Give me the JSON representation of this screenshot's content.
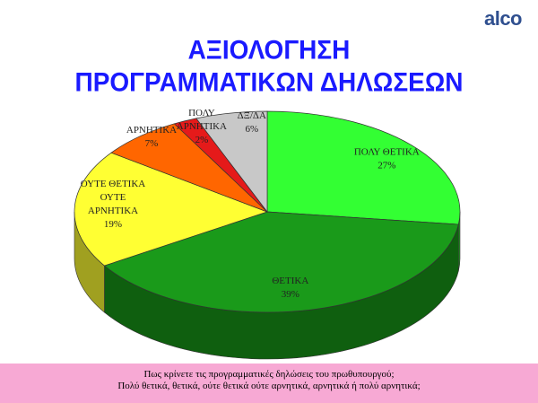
{
  "logo": "alco",
  "header": {
    "title_line1": "ΑΞΙΟΛΟΓΗΣΗ",
    "title_line2": "ΠΡΟΓΡΑΜΜΑΤΙΚΩΝ ΔΗΛΩΣΕΩΝ"
  },
  "footer": {
    "line1": "Πως κρίνετε τις προγραμματικές δηλώσεις του πρωθυπουργού;",
    "line2": "Πολύ θετικά, θετικά, ούτε θετικά ούτε αρνητικά, αρνητικά ή πολύ αρνητικά;"
  },
  "chart_data": {
    "type": "pie",
    "style": "3d",
    "title": "",
    "slices": [
      {
        "label": [
          "ΠΟΛΥ ΘΕΤΙΚΑ"
        ],
        "value": 27,
        "value_label": "27%",
        "color": "#33ff33",
        "side_color": "#1fa01f"
      },
      {
        "label": [
          "ΘΕΤΙΚΑ"
        ],
        "value": 39,
        "value_label": "39%",
        "color": "#1a9a1a",
        "side_color": "#0f5f0f"
      },
      {
        "label": [
          "ΟΥΤΕ ΘΕΤΙΚΑ",
          "ΟΥΤΕ",
          "ΑΡΝΗΤΙΚΑ"
        ],
        "value": 19,
        "value_label": "19%",
        "color": "#ffff33",
        "side_color": "#a0a020"
      },
      {
        "label": [
          "ΑΡΝΗΤΙΚΑ"
        ],
        "value": 7,
        "value_label": "7%",
        "color": "#ff6600",
        "side_color": "#a04000"
      },
      {
        "label": [
          "ΠΟΛΥ",
          "ΑΡΝΗΤΙΚΑ"
        ],
        "value": 2,
        "value_label": "2%",
        "color": "#e51a1a",
        "side_color": "#8f1010"
      },
      {
        "label": [
          "ΔΞ/ΔΑ"
        ],
        "value": 6,
        "value_label": "6%",
        "color": "#c8c8c8",
        "side_color": "#808080"
      }
    ]
  }
}
